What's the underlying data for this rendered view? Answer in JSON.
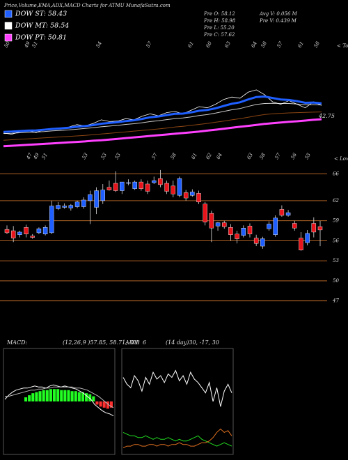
{
  "header": {
    "title": "Price,Volume,EMA,ADX,MACD Charts for ATMU MunafaSutra.com",
    "legend": [
      {
        "text": "DOW ST: 58.43",
        "color": "#1f5fff"
      },
      {
        "text": "DOW MT: 58.54",
        "color": "#ffffff"
      },
      {
        "text": "DOW PT: 50.81",
        "color": "#ff40ff"
      }
    ],
    "stats": [
      "Pre O: 58.12",
      "Pre H: 58.98",
      "Pre L: 55.20",
      "Pre C: 57.62",
      "Avg V: 0.056 M",
      "Pre V: 0.439 M"
    ]
  },
  "chart_data": [
    {
      "type": "line",
      "tops": [
        "50",
        "49",
        "51",
        "54",
        "57",
        "61",
        "60",
        "63",
        "64",
        "58",
        "57",
        "61",
        "58"
      ],
      "tops_note": "< Tops",
      "lows": [
        "47",
        "49",
        "51",
        "53",
        "53",
        "53",
        "57",
        "58",
        "61",
        "62",
        "64",
        "63",
        "58",
        "57",
        "56",
        "55"
      ],
      "lows_note": "< Lows",
      "annotation": "42.75",
      "ylim": [
        30,
        75
      ],
      "series": [
        {
          "color": "#8b4513",
          "width": 1,
          "values": [
            34,
            34.2,
            34.4,
            34.6,
            34.8,
            35,
            35.2,
            35.4,
            35.6,
            35.8,
            36,
            36.3,
            36.6,
            36.9,
            37.2,
            37.5,
            37.8,
            38.1,
            38.4,
            38.7,
            39.1,
            39.5,
            39.8,
            40.2,
            40.6,
            41,
            41.5,
            42,
            42.5,
            43,
            43.6,
            44.2,
            44.7,
            45,
            45.2,
            45.4,
            45.5,
            45.6,
            45.7,
            45.8
          ]
        },
        {
          "color": "#ff40ff",
          "width": 3,
          "values": [
            31.5,
            31.7,
            31.9,
            32.1,
            32.3,
            32.5,
            32.7,
            32.9,
            33.1,
            33.3,
            33.5,
            33.8,
            34,
            34.3,
            34.6,
            34.9,
            35.2,
            35.5,
            35.8,
            36.1,
            36.4,
            36.7,
            37,
            37.3,
            37.6,
            38,
            38.4,
            38.8,
            39.2,
            39.6,
            40,
            40.4,
            40.8,
            41.1,
            41.4,
            41.7,
            41.9,
            42.2,
            42.5,
            42.75
          ]
        },
        {
          "color": "#cccccc",
          "width": 1,
          "values": [
            36.8,
            36.9,
            37.1,
            37.3,
            37.4,
            37.6,
            37.9,
            38.1,
            38.3,
            38.6,
            38.9,
            39.2,
            39.6,
            39.9,
            40.2,
            40.6,
            40.9,
            41.3,
            41.8,
            42.1,
            42.6,
            43,
            43.3,
            43.7,
            44.3,
            44.7,
            45.3,
            46,
            46.7,
            47.2,
            48.1,
            48.9,
            49.3,
            49.4,
            49.3,
            49.3,
            49.1,
            48.8,
            48.8,
            48.7
          ]
        },
        {
          "color": "#ffffff",
          "width": 0.8,
          "values": [
            37,
            36.5,
            37.5,
            38,
            37.2,
            38.5,
            39,
            38.6,
            39.5,
            40.5,
            40,
            41,
            42.5,
            41.8,
            42,
            43,
            42.5,
            44,
            45,
            44.2,
            45.5,
            46,
            45,
            46.5,
            48,
            47.5,
            49,
            51,
            52,
            51.5,
            54,
            55,
            53,
            50,
            49,
            50.5,
            49,
            47.5,
            50,
            48.5
          ]
        },
        {
          "color": "#1f5fff",
          "width": 3,
          "values": [
            37.5,
            37.6,
            37.8,
            38,
            38.1,
            38.4,
            38.7,
            38.9,
            39.2,
            39.6,
            39.9,
            40.3,
            40.9,
            41.2,
            41.5,
            42,
            42.3,
            42.9,
            43.6,
            43.9,
            44.5,
            45,
            45.1,
            45.6,
            46.3,
            46.6,
            47.3,
            48.3,
            49.2,
            49.8,
            51,
            52,
            52.2,
            51.6,
            51,
            50.8,
            50.3,
            49.6,
            49.7,
            49.4
          ]
        }
      ]
    },
    {
      "type": "candlestick",
      "ylim": [
        43,
        67
      ],
      "yticks": [
        66,
        62,
        59,
        56,
        53,
        50,
        47
      ],
      "grid": true,
      "grid_color": "#c8702a",
      "up_color": "#1f5fff",
      "down_color": "#e8141b",
      "open": [
        57.7,
        57.5,
        56.9,
        58,
        56.7,
        57.2,
        57,
        57.2,
        60.8,
        61,
        60.9,
        61.1,
        61.1,
        62,
        61,
        62,
        64,
        64.6,
        63.5,
        64.6,
        63.8,
        64.8,
        64.5,
        64.7,
        65.3,
        64.6,
        64.2,
        62.8,
        63.2,
        62.8,
        63.1,
        61.5,
        60.1,
        58.2,
        58.7,
        58,
        57,
        56.8,
        58.2,
        56.4,
        55.2,
        57.8,
        56.9,
        60.7,
        59.8,
        58.6,
        56.4,
        55.7,
        58.6,
        58.12
      ],
      "high": [
        58.3,
        58.2,
        57.5,
        58.4,
        57,
        58,
        58.3,
        62,
        61.8,
        61.6,
        61.5,
        62,
        62.5,
        63.5,
        64,
        64.5,
        65,
        66.4,
        64.8,
        65.2,
        65,
        65.2,
        65,
        65.6,
        66.6,
        65,
        65,
        65.6,
        63.6,
        63.7,
        63.5,
        61.8,
        60.5,
        58.8,
        59,
        58.5,
        57.5,
        58.3,
        58.6,
        56.9,
        56.6,
        58.9,
        59.8,
        61.3,
        60.6,
        59,
        57.3,
        57.6,
        59.5,
        58.98
      ],
      "low": [
        57,
        55.8,
        56.5,
        56.5,
        56.3,
        57,
        56.8,
        57,
        60.6,
        60.8,
        60.5,
        60.9,
        60.8,
        58.5,
        60,
        61.5,
        63.5,
        63.3,
        63,
        64.3,
        63.6,
        63.5,
        63,
        64.5,
        64,
        63,
        62.5,
        62.5,
        62,
        62.6,
        61.5,
        58.3,
        55.8,
        57.5,
        57.8,
        56,
        55.6,
        56.5,
        56.5,
        55.2,
        54.8,
        57.5,
        56.6,
        59.6,
        59.6,
        57.5,
        54.5,
        55.3,
        56.5,
        55.2
      ],
      "close": [
        57.2,
        56.4,
        57.3,
        57,
        56.5,
        57.8,
        58,
        61.2,
        61.3,
        61.2,
        61.3,
        61.8,
        62.1,
        62.9,
        63.5,
        63.6,
        63.6,
        63.5,
        64.8,
        64.7,
        64.8,
        63.8,
        63.4,
        65,
        64.4,
        63.4,
        63,
        65.3,
        62.4,
        63.3,
        61.8,
        58.8,
        57.9,
        58.7,
        58.1,
        56.9,
        56.3,
        57.9,
        57,
        55.6,
        56.3,
        58.5,
        59.4,
        59.8,
        60.2,
        57.9,
        54.6,
        57.1,
        57.3,
        57.62
      ]
    },
    {
      "type": "macd",
      "label": "MACD:",
      "params": "(12,26,9 )57.85, 58.71, -0.8",
      "ylim": [
        -5,
        5
      ],
      "up_color": "#22ff22",
      "down_color": "#ff3030",
      "histogram": [
        0.4,
        0.6,
        0.8,
        0.9,
        1,
        1.1,
        1.1,
        1.2,
        1.2,
        1.2,
        1.1,
        1.1,
        1.1,
        1,
        1,
        0.9,
        0.9,
        0.8,
        0.7,
        0.5,
        -0.3,
        -0.5,
        -0.6,
        -0.7,
        -0.6
      ],
      "series": [
        {
          "color": "#ffffff",
          "values": [
            0.2,
            0.6,
            0.9,
            1.1,
            1.2,
            1.3,
            1.3,
            1.4,
            1.5,
            1.4,
            1.4,
            1.3,
            1.5,
            1.6,
            1.5,
            1.4,
            1.5,
            1.4,
            1.3,
            1.2,
            1,
            0.8,
            0.5,
            0.2,
            -0.3,
            -0.6,
            -0.9,
            -1.1,
            -1.2,
            -1.4
          ]
        },
        {
          "color": "#bbbbbb",
          "values": [
            0.5,
            0.5,
            0.6,
            0.7,
            0.8,
            0.9,
            1,
            1.1,
            1.1,
            1.2,
            1.2,
            1.3,
            1.3,
            1.4,
            1.4,
            1.4,
            1.4,
            1.4,
            1.4,
            1.3,
            1.3,
            1.2,
            1.1,
            0.9,
            0.7,
            0.5,
            0.2,
            -0.1,
            -0.4,
            -0.6
          ]
        }
      ]
    },
    {
      "type": "adx",
      "label": "ADX:",
      "value_text": "6",
      "params": "(14 day)30, -17, 30",
      "ylim": [
        0,
        60
      ],
      "series": [
        {
          "color": "#ffffff",
          "values": [
            44,
            40,
            38,
            45,
            42,
            36,
            44,
            40,
            47,
            43,
            45,
            41,
            46,
            44,
            48,
            42,
            45,
            40,
            47,
            43,
            41,
            38,
            35,
            41,
            30,
            38,
            27,
            36,
            40,
            35
          ]
        },
        {
          "color": "#22dd22",
          "values": [
            12,
            11,
            10,
            10,
            9,
            9,
            10,
            9,
            8,
            9,
            8,
            8,
            9,
            8,
            7,
            8,
            7,
            7,
            8,
            9,
            10,
            8,
            7,
            6,
            5,
            4,
            5,
            6,
            5,
            4
          ]
        },
        {
          "color": "#e07020",
          "values": [
            3,
            4,
            4,
            5,
            5,
            4,
            4,
            5,
            5,
            4,
            5,
            5,
            4,
            5,
            5,
            6,
            5,
            5,
            4,
            4,
            5,
            6,
            6,
            7,
            9,
            12,
            14,
            12,
            13,
            10
          ]
        }
      ]
    }
  ]
}
